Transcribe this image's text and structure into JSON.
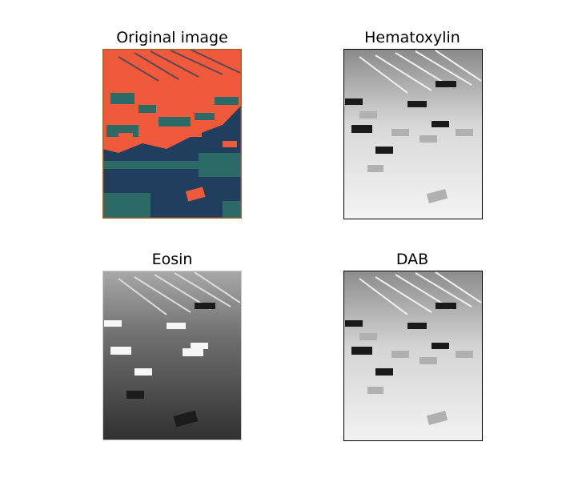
{
  "figure": {
    "panels": [
      {
        "title": "Original image",
        "channel": "original"
      },
      {
        "title": "Hematoxylin",
        "channel": "hematoxylin"
      },
      {
        "title": "Eosin",
        "channel": "eosin"
      },
      {
        "title": "DAB",
        "channel": "dab"
      }
    ]
  },
  "colors": {
    "original_base": "#203f5f",
    "original_highlight": "#ef5a3c",
    "original_mid": "#2b6a66",
    "original_frame": "#a3622a",
    "gray_frame": "#000000",
    "eosin_frame": "#cccccc"
  }
}
